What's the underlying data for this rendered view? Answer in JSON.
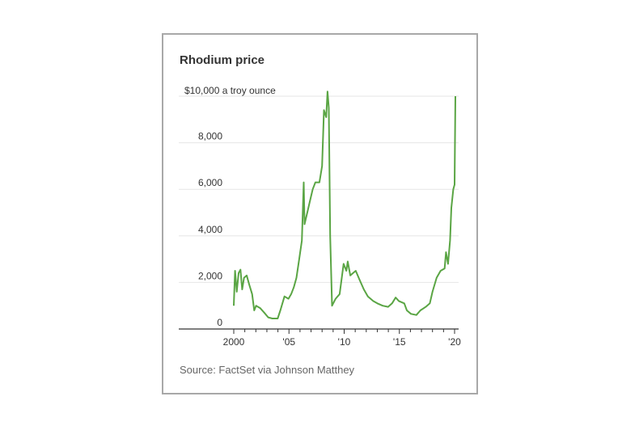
{
  "chart_data": {
    "type": "line",
    "title": "Rhodium price",
    "ylabel": "$10,000 a troy ounce",
    "source": "Source: FactSet via Johnson Matthey",
    "xlim": [
      1999.5,
      2020.4
    ],
    "ylim": [
      0,
      10000
    ],
    "yticks": [
      0,
      2000,
      4000,
      6000,
      8000
    ],
    "ytick_labels": [
      "0",
      "2,000",
      "4,000",
      "6,000",
      "8,000"
    ],
    "xticks": [
      2000,
      2005,
      2010,
      2015,
      2020
    ],
    "xtick_labels": [
      "2000",
      "'05",
      "'10",
      "'15",
      "'20"
    ],
    "grid": true,
    "line_color": "#5aa544",
    "series": [
      {
        "x": [
          2000.0,
          2000.12,
          2000.27,
          2000.44,
          2000.61,
          2000.76,
          2000.93,
          2001.17,
          2001.41,
          2001.66,
          2001.85,
          2002.02,
          2002.39,
          2002.76,
          2003.12,
          2003.49,
          2003.98,
          2004.22,
          2004.59,
          2004.95,
          2005.2,
          2005.44,
          2005.68,
          2005.93,
          2006.17,
          2006.34,
          2006.41,
          2006.66,
          2006.9,
          2007.15,
          2007.39,
          2007.76,
          2008.0,
          2008.17,
          2008.37,
          2008.49,
          2008.61,
          2008.73,
          2008.9,
          2009.22,
          2009.59,
          2009.95,
          2010.2,
          2010.32,
          2010.56,
          2010.8,
          2011.05,
          2011.41,
          2011.78,
          2012.15,
          2012.63,
          2013.0,
          2013.49,
          2013.98,
          2014.34,
          2014.66,
          2014.95,
          2015.44,
          2015.68,
          2016.05,
          2016.54,
          2016.9,
          2017.39,
          2017.76,
          2018.0,
          2018.37,
          2018.73,
          2019.1,
          2019.22,
          2019.41,
          2019.59,
          2019.71,
          2019.88,
          2020.0,
          2020.07
        ],
        "y": [
          1000,
          2500,
          1600,
          2400,
          2550,
          1700,
          2200,
          2300,
          1900,
          1500,
          800,
          1000,
          900,
          700,
          500,
          450,
          450,
          800,
          1400,
          1300,
          1500,
          1800,
          2200,
          3000,
          3800,
          6300,
          4500,
          5000,
          5500,
          6000,
          6300,
          6300,
          7000,
          9400,
          9100,
          10200,
          9500,
          4000,
          1000,
          1300,
          1500,
          2800,
          2500,
          2900,
          2300,
          2400,
          2500,
          2100,
          1700,
          1400,
          1200,
          1100,
          1000,
          950,
          1100,
          1350,
          1200,
          1100,
          800,
          650,
          600,
          800,
          950,
          1100,
          1600,
          2200,
          2500,
          2600,
          3300,
          2800,
          3800,
          5200,
          6000,
          6200,
          10000
        ]
      }
    ]
  }
}
